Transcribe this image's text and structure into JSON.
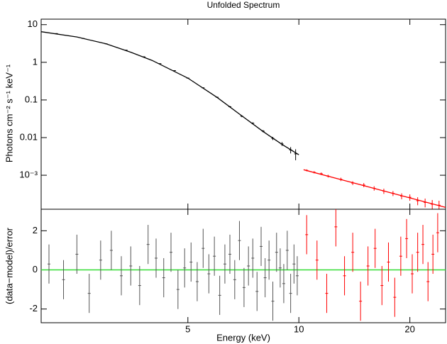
{
  "chart_data": [
    {
      "type": "errorbar",
      "title": "Unfolded Spectrum",
      "ylabel": "Photons cm⁻² s⁻¹ keV⁻¹",
      "xlog": true,
      "ylog": true,
      "xlim": [
        2,
        25
      ],
      "ylim": [
        0.000125,
        14
      ],
      "yticks": [
        10,
        1,
        0.1,
        0.01,
        {
          "value": 0.001,
          "label": "10⁻³"
        }
      ],
      "series": [
        {
          "color": "#000000",
          "x": [
            2.2,
            2.6,
            3.0,
            3.4,
            3.8,
            4.2,
            4.6,
            5.0,
            5.5,
            6.0,
            6.5,
            7.0,
            7.5,
            8.0,
            8.5,
            9.0,
            9.5,
            9.8
          ],
          "values": [
            5.8,
            4.3,
            3.1,
            2.1,
            1.4,
            0.92,
            0.6,
            0.38,
            0.21,
            0.118,
            0.066,
            0.037,
            0.024,
            0.0148,
            0.0095,
            0.0068,
            0.0047,
            0.0037
          ],
          "errors": [
            0.1,
            0.07,
            0.05,
            0.04,
            0.03,
            0.02,
            0.015,
            0.01,
            0.006,
            0.004,
            0.003,
            0.002,
            0.0015,
            0.001,
            0.0009,
            0.0008,
            0.0009,
            0.0012
          ]
        },
        {
          "color": "#ff0000",
          "x": [
            10.5,
            11,
            11.5,
            12,
            13,
            14,
            15,
            16,
            17,
            18,
            19,
            20,
            21,
            22,
            23,
            24
          ],
          "values": [
            0.00135,
            0.0012,
            0.0011,
            0.00095,
            0.00078,
            0.00062,
            0.00055,
            0.00045,
            0.00038,
            0.00033,
            0.00028,
            0.00026,
            0.00021,
            0.00019,
            0.00017,
            0.00016
          ],
          "errors": [
            8e-05,
            8e-05,
            8e-05,
            8e-05,
            8e-05,
            7e-05,
            7e-05,
            6e-05,
            6e-05,
            5e-05,
            5e-05,
            5e-05,
            5e-05,
            5e-05,
            5e-05,
            5e-05
          ]
        }
      ],
      "models": [
        {
          "color": "#000000",
          "x": [
            2,
            2.5,
            3,
            3.5,
            4,
            5,
            6,
            7,
            8,
            9,
            10
          ],
          "values": [
            6.5,
            4.7,
            3.1,
            1.85,
            1.12,
            0.38,
            0.117,
            0.038,
            0.0145,
            0.0066,
            0.0035
          ]
        },
        {
          "color": "#ff0000",
          "x": [
            10.3,
            15,
            20,
            25
          ],
          "values": [
            0.0014,
            0.00053,
            0.00025,
            0.00014
          ]
        }
      ]
    },
    {
      "type": "errorbar",
      "xlabel": "Energy (keV)",
      "ylabel": "(data−model)/error",
      "xlog": true,
      "ylog": false,
      "xlim": [
        2,
        25
      ],
      "ylim": [
        -2.7,
        3.1
      ],
      "xticks": [
        5,
        10,
        20
      ],
      "yticks": [
        2,
        0,
        -2
      ],
      "reference_line": {
        "value": 0,
        "color": "#33dd33"
      },
      "series": [
        {
          "color": "#555555",
          "x": [
            2.1,
            2.3,
            2.5,
            2.7,
            2.9,
            3.1,
            3.3,
            3.5,
            3.7,
            3.9,
            4.1,
            4.3,
            4.5,
            4.7,
            4.9,
            5.1,
            5.3,
            5.5,
            5.7,
            5.9,
            6.1,
            6.3,
            6.5,
            6.7,
            6.9,
            7.1,
            7.3,
            7.5,
            7.7,
            7.9,
            8.1,
            8.3,
            8.5,
            8.7,
            8.9,
            9.1,
            9.3,
            9.5,
            9.7,
            9.9
          ],
          "values": [
            0.3,
            -0.5,
            0.8,
            -1.2,
            0.5,
            1.0,
            -0.3,
            0.2,
            -0.8,
            1.3,
            0.6,
            -0.4,
            0.9,
            -1.0,
            0.1,
            0.4,
            -0.6,
            1.1,
            -0.2,
            0.7,
            -1.3,
            0.3,
            0.8,
            -0.5,
            1.5,
            -0.9,
            0.2,
            0.6,
            -1.1,
            1.2,
            -0.4,
            0.5,
            -1.6,
            0.9,
            0.1,
            -0.7,
            1.0,
            -1.2,
            0.3,
            -0.3
          ],
          "errors": [
            1,
            1,
            1,
            1,
            1,
            1,
            1,
            1,
            1,
            1,
            1,
            1,
            1,
            1,
            1,
            1,
            1,
            1,
            1,
            1,
            1,
            1,
            1,
            1,
            1,
            1,
            1,
            1,
            1,
            1,
            1,
            1,
            1,
            1,
            1,
            1,
            1,
            1,
            1,
            1
          ]
        },
        {
          "color": "#ff0000",
          "x": [
            10.5,
            11.2,
            11.9,
            12.6,
            13.3,
            14.0,
            14.7,
            15.4,
            16.1,
            16.8,
            17.5,
            18.2,
            18.9,
            19.6,
            20.3,
            21.0,
            21.7,
            22.4,
            23.1,
            23.8
          ],
          "values": [
            1.8,
            0.5,
            -1.2,
            2.2,
            -0.3,
            0.9,
            -1.6,
            0.2,
            1.1,
            -0.8,
            0.4,
            -1.4,
            0.7,
            1.6,
            -0.2,
            0.9,
            1.3,
            -0.6,
            0.8,
            1.9
          ],
          "errors": [
            1,
            1,
            1,
            1,
            1,
            1,
            1,
            1,
            1,
            1,
            1,
            1,
            1,
            1,
            1,
            1,
            1,
            1,
            1,
            1
          ]
        }
      ]
    }
  ]
}
